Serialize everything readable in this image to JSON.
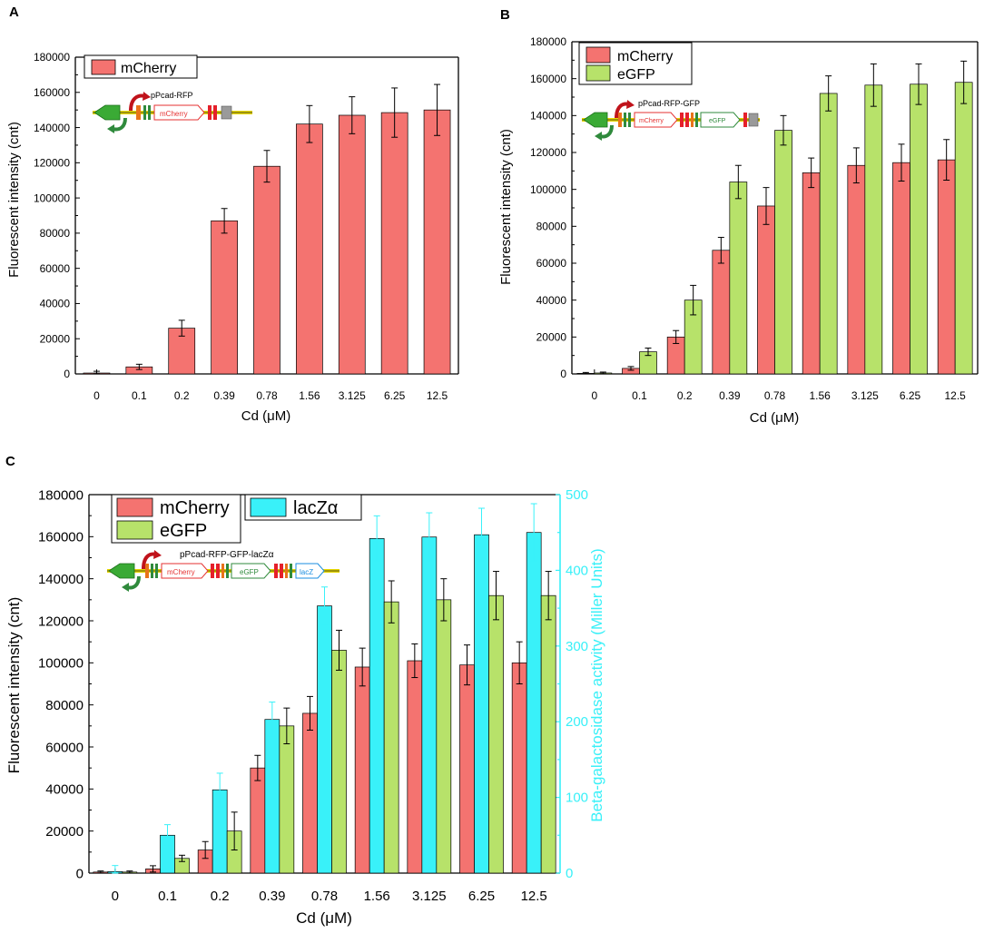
{
  "colors": {
    "mcherry": "#f47370",
    "egfp": "#b7e26a",
    "lacz": "#39f1f9",
    "axis": "#000000",
    "right_axis": "#38f0f8"
  },
  "chart_data": [
    {
      "panel": "A",
      "type": "bar",
      "title": "",
      "xlabel": "Cd (μM)",
      "ylabel": "Fluorescent intensity (cnt)",
      "ylim": [
        0,
        180000
      ],
      "yticks": [
        0,
        20000,
        40000,
        60000,
        80000,
        100000,
        120000,
        140000,
        160000,
        180000
      ],
      "categories": [
        "0",
        "0.1",
        "0.2",
        "0.39",
        "0.78",
        "1.56",
        "3.125",
        "6.25",
        "12.5"
      ],
      "legend": [
        "mCherry"
      ],
      "construct": {
        "label": "pPcad-RFP",
        "genes": [
          "mCherry"
        ]
      },
      "series": [
        {
          "name": "mCherry",
          "color": "#f47370",
          "values": [
            500,
            4000,
            26000,
            87000,
            118000,
            142000,
            147000,
            148500,
            150000
          ],
          "errors": [
            1000,
            1500,
            4500,
            7000,
            9000,
            10500,
            10500,
            14000,
            14500
          ]
        }
      ]
    },
    {
      "panel": "B",
      "type": "bar",
      "title": "",
      "xlabel": "Cd (μM)",
      "ylabel": "Fluorescent intensity (cnt)",
      "ylim": [
        0,
        180000
      ],
      "yticks": [
        0,
        20000,
        40000,
        60000,
        80000,
        100000,
        120000,
        140000,
        160000,
        180000
      ],
      "categories": [
        "0",
        "0.1",
        "0.2",
        "0.39",
        "0.78",
        "1.56",
        "3.125",
        "6.25",
        "12.5"
      ],
      "legend": [
        "mCherry",
        "eGFP"
      ],
      "construct": {
        "label": "pPcad-RFP-GFP",
        "genes": [
          "mCherry",
          "eGFP"
        ]
      },
      "series": [
        {
          "name": "mCherry",
          "color": "#f47370",
          "values": [
            300,
            3000,
            20000,
            67000,
            91000,
            109000,
            113000,
            114500,
            116000
          ],
          "errors": [
            500,
            1000,
            3500,
            7000,
            10000,
            8000,
            9500,
            10000,
            11000
          ]
        },
        {
          "name": "eGFP",
          "color": "#b7e26a",
          "values": [
            500,
            12000,
            40000,
            104000,
            132000,
            152000,
            156500,
            157000,
            158000
          ],
          "errors": [
            500,
            2000,
            8000,
            9000,
            8000,
            9500,
            11500,
            11000,
            11500
          ]
        }
      ]
    },
    {
      "panel": "C",
      "type": "bar",
      "title": "",
      "xlabel": "Cd (μM)",
      "ylabel": "Fluorescent intensity (cnt)",
      "ylabel_right": "Beta-galactosidase activity (Miller Units)",
      "ylim": [
        0,
        180000
      ],
      "ylim_right": [
        0,
        500
      ],
      "yticks": [
        0,
        20000,
        40000,
        60000,
        80000,
        100000,
        120000,
        140000,
        160000,
        180000
      ],
      "yticks_right": [
        0,
        100,
        200,
        300,
        400,
        500
      ],
      "categories": [
        "0",
        "0.1",
        "0.2",
        "0.39",
        "0.78",
        "1.56",
        "3.125",
        "6.25",
        "12.5"
      ],
      "legend": [
        "mCherry",
        "eGFP",
        "lacZα"
      ],
      "construct": {
        "label": "pPcad-RFP-GFP-lacZα",
        "genes": [
          "mCherry",
          "eGFP",
          "lacZ"
        ]
      },
      "series": [
        {
          "name": "mCherry",
          "axis": "left",
          "color": "#f47370",
          "values": [
            500,
            2000,
            11000,
            50000,
            76000,
            98000,
            101000,
            99000,
            100000
          ],
          "errors": [
            500,
            1500,
            4000,
            6000,
            8000,
            9000,
            8000,
            9500,
            10000
          ]
        },
        {
          "name": "lacZα",
          "axis": "right",
          "color": "#39f1f9",
          "values": [
            2,
            50,
            110,
            203,
            353,
            442,
            444,
            447,
            450
          ],
          "errors": [
            8,
            14,
            22,
            23,
            25,
            30,
            32,
            35,
            38
          ]
        },
        {
          "name": "eGFP",
          "axis": "left",
          "color": "#b7e26a",
          "values": [
            500,
            7000,
            20000,
            70000,
            106000,
            129000,
            130000,
            132000,
            132000
          ],
          "errors": [
            500,
            1500,
            9000,
            8500,
            9500,
            10000,
            10000,
            11500,
            11500
          ]
        }
      ]
    }
  ]
}
